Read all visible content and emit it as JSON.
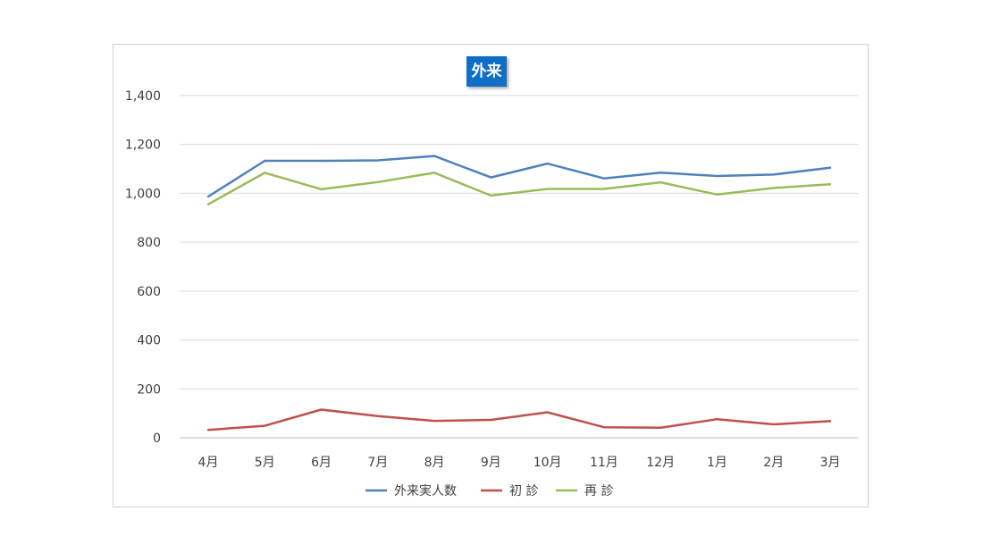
{
  "chart_data": {
    "type": "line",
    "title": "外来",
    "categories": [
      "4月",
      "5月",
      "6月",
      "7月",
      "8月",
      "9月",
      "10月",
      "11月",
      "12月",
      "1月",
      "2月",
      "3月"
    ],
    "ylim": [
      0,
      1400
    ],
    "yticks": [
      0,
      200,
      400,
      600,
      800,
      1000,
      1200,
      1400
    ],
    "ytick_labels": [
      "0",
      "200",
      "400",
      "600",
      "800",
      "1,000",
      "1,200",
      "1,400"
    ],
    "grid": true,
    "legend_position": "bottom",
    "series": [
      {
        "name": "外来実人数",
        "color": "#4f81bd",
        "values": [
          987,
          1133,
          1133,
          1135,
          1153,
          1065,
          1122,
          1061,
          1085,
          1071,
          1077,
          1105
        ]
      },
      {
        "name": "初 診",
        "color": "#c0504d",
        "values": [
          32,
          49,
          115,
          89,
          69,
          73,
          104,
          43,
          41,
          76,
          55,
          68
        ]
      },
      {
        "name": "再 診",
        "color": "#9bbb59",
        "values": [
          955,
          1084,
          1017,
          1046,
          1084,
          991,
          1018,
          1018,
          1045,
          995,
          1022,
          1037
        ]
      }
    ]
  }
}
